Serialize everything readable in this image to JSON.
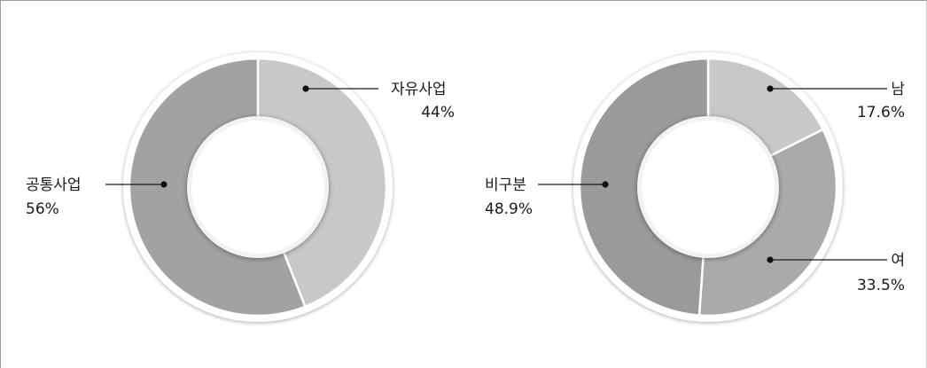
{
  "chart_data": [
    {
      "type": "pie",
      "variant": "donut",
      "title": "",
      "slices": [
        {
          "label": "자유사업",
          "value": 44,
          "value_label": "44%",
          "color": "#c8c8c8"
        },
        {
          "label": "공통사업",
          "value": 56,
          "value_label": "56%",
          "color": "#a2a2a2"
        }
      ]
    },
    {
      "type": "pie",
      "variant": "donut",
      "title": "",
      "slices": [
        {
          "label": "남",
          "value": 17.6,
          "value_label": "17.6%",
          "color": "#c8c8c8"
        },
        {
          "label": "여",
          "value": 33.5,
          "value_label": "33.5%",
          "color": "#aaaaaa"
        },
        {
          "label": "비구분",
          "value": 48.9,
          "value_label": "48.9%",
          "color": "#9a9a9a"
        }
      ]
    }
  ]
}
